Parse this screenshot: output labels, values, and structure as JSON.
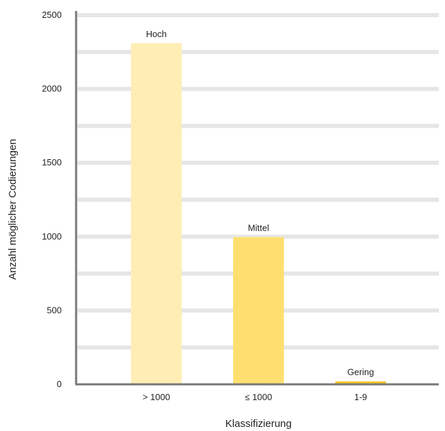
{
  "chart_data": {
    "type": "bar",
    "categories": [
      "> 1000",
      "≤ 1000",
      "1-9"
    ],
    "values": [
      2310,
      997,
      20
    ],
    "bar_labels": [
      "Hoch",
      "Mittel",
      "Gering"
    ],
    "bar_colors": [
      "#feeeb4",
      "#ffdf70",
      "#f2c928"
    ],
    "xlabel": "Klassifizierung",
    "ylabel": "Anzahl möglicher Codierungen",
    "ylim": [
      0,
      2500
    ],
    "yticks": [
      0,
      500,
      1000,
      1500,
      2000,
      2500
    ],
    "grid": true,
    "gridline_color": "#e6e6e6",
    "axis_color": "#777777"
  }
}
